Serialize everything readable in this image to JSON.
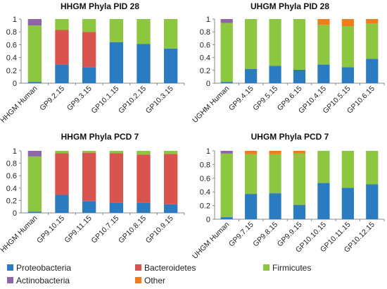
{
  "chart_data": [
    {
      "type": "bar",
      "stacked": true,
      "title": "HHGM Phyla PID 28",
      "categories": [
        "HHGM Human",
        "GP9.2.15",
        "GP9.3.15",
        "GP10.1.15",
        "GP10.2.15",
        "GP10.3.15"
      ],
      "ylim": [
        0,
        1
      ],
      "yticks": [
        "0",
        "0.2",
        "0.4",
        "0.6",
        "0.8",
        "1"
      ],
      "grid": false,
      "series": [
        {
          "name": "Proteobacteria",
          "color": "#2b7bc0",
          "values": [
            0.02,
            0.29,
            0.25,
            0.64,
            0.61,
            0.54
          ]
        },
        {
          "name": "Bacteroidetes",
          "color": "#d9534f",
          "values": [
            0.0,
            0.54,
            0.55,
            0.0,
            0.0,
            0.0
          ]
        },
        {
          "name": "Firmicutes",
          "color": "#8dc63f",
          "values": [
            0.88,
            0.17,
            0.2,
            0.36,
            0.39,
            0.46
          ]
        },
        {
          "name": "Actinobacteria",
          "color": "#8e65a8",
          "values": [
            0.1,
            0.0,
            0.0,
            0.0,
            0.0,
            0.0
          ]
        },
        {
          "name": "Other",
          "color": "#f07c1c",
          "values": [
            0.0,
            0.0,
            0.0,
            0.0,
            0.0,
            0.0
          ]
        }
      ]
    },
    {
      "type": "bar",
      "stacked": true,
      "title": "UHGM Phyla PID 28",
      "categories": [
        "UGHM Human",
        "GP9.4.15",
        "GP9.5.15",
        "GP9.6.15",
        "GP10.4.15",
        "GP10.5.15",
        "GP10.6.15"
      ],
      "ylim": [
        0,
        1
      ],
      "yticks": [
        "0",
        "0.2",
        "0.4",
        "0.6",
        "0.8",
        "1"
      ],
      "grid": false,
      "series": [
        {
          "name": "Proteobacteria",
          "color": "#2b7bc0",
          "values": [
            0.02,
            0.22,
            0.27,
            0.21,
            0.29,
            0.25,
            0.38
          ]
        },
        {
          "name": "Bacteroidetes",
          "color": "#d9534f",
          "values": [
            0.0,
            0.0,
            0.0,
            0.0,
            0.0,
            0.0,
            0.0
          ]
        },
        {
          "name": "Firmicutes",
          "color": "#8dc63f",
          "values": [
            0.92,
            0.78,
            0.73,
            0.79,
            0.62,
            0.64,
            0.55
          ]
        },
        {
          "name": "Actinobacteria",
          "color": "#8e65a8",
          "values": [
            0.06,
            0.0,
            0.0,
            0.0,
            0.0,
            0.0,
            0.0
          ]
        },
        {
          "name": "Other",
          "color": "#f07c1c",
          "values": [
            0.0,
            0.0,
            0.0,
            0.0,
            0.09,
            0.11,
            0.07
          ]
        }
      ]
    },
    {
      "type": "bar",
      "stacked": true,
      "title": "HHGM Phyla PCD 7",
      "categories": [
        "HHGM Human",
        "GP9.10.15",
        "GP9.11.15",
        "GP10.7.15",
        "GP10.8.15",
        "GP10.9.15"
      ],
      "ylim": [
        0,
        1
      ],
      "yticks": [
        "0",
        "0.2",
        "0.4",
        "0.6",
        "0.8",
        "1"
      ],
      "grid": false,
      "series": [
        {
          "name": "Proteobacteria",
          "color": "#2b7bc0",
          "values": [
            0.02,
            0.29,
            0.19,
            0.16,
            0.16,
            0.14
          ]
        },
        {
          "name": "Bacteroidetes",
          "color": "#d9534f",
          "values": [
            0.0,
            0.67,
            0.78,
            0.8,
            0.78,
            0.81
          ]
        },
        {
          "name": "Firmicutes",
          "color": "#8dc63f",
          "values": [
            0.89,
            0.04,
            0.03,
            0.04,
            0.06,
            0.05
          ]
        },
        {
          "name": "Actinobacteria",
          "color": "#8e65a8",
          "values": [
            0.09,
            0.0,
            0.0,
            0.0,
            0.0,
            0.0
          ]
        },
        {
          "name": "Other",
          "color": "#f07c1c",
          "values": [
            0.0,
            0.0,
            0.0,
            0.0,
            0.0,
            0.0
          ]
        }
      ]
    },
    {
      "type": "bar",
      "stacked": true,
      "title": "UHGM Phyla PCD 7",
      "categories": [
        "UHGM Human",
        "GP9.7.15",
        "GP9.8.15",
        "GP9.9.15",
        "GP10.10.15",
        "GP10.11.15",
        "GP10.12.15"
      ],
      "ylim": [
        0,
        1
      ],
      "yticks": [
        "0",
        "0.2",
        "0.4",
        "0.6",
        "0.8",
        "1"
      ],
      "grid": false,
      "series": [
        {
          "name": "Proteobacteria",
          "color": "#2b7bc0",
          "values": [
            0.03,
            0.37,
            0.38,
            0.21,
            0.53,
            0.46,
            0.51
          ]
        },
        {
          "name": "Bacteroidetes",
          "color": "#d9534f",
          "values": [
            0.0,
            0.0,
            0.0,
            0.0,
            0.0,
            0.0,
            0.0
          ]
        },
        {
          "name": "Firmicutes",
          "color": "#8dc63f",
          "values": [
            0.93,
            0.58,
            0.57,
            0.75,
            0.47,
            0.54,
            0.49
          ]
        },
        {
          "name": "Actinobacteria",
          "color": "#8e65a8",
          "values": [
            0.04,
            0.0,
            0.0,
            0.0,
            0.0,
            0.0,
            0.0
          ]
        },
        {
          "name": "Other",
          "color": "#f07c1c",
          "values": [
            0.0,
            0.05,
            0.05,
            0.04,
            0.0,
            0.0,
            0.0
          ]
        }
      ]
    }
  ],
  "legend": {
    "placement": "bottom",
    "items": [
      {
        "label": "Proteobacteria",
        "color": "#2b7bc0"
      },
      {
        "label": "Bacteroidetes",
        "color": "#d9534f"
      },
      {
        "label": "Firmicutes",
        "color": "#8dc63f"
      },
      {
        "label": "Actinobacteria",
        "color": "#8e65a8"
      },
      {
        "label": "Other",
        "color": "#f07c1c"
      }
    ]
  }
}
